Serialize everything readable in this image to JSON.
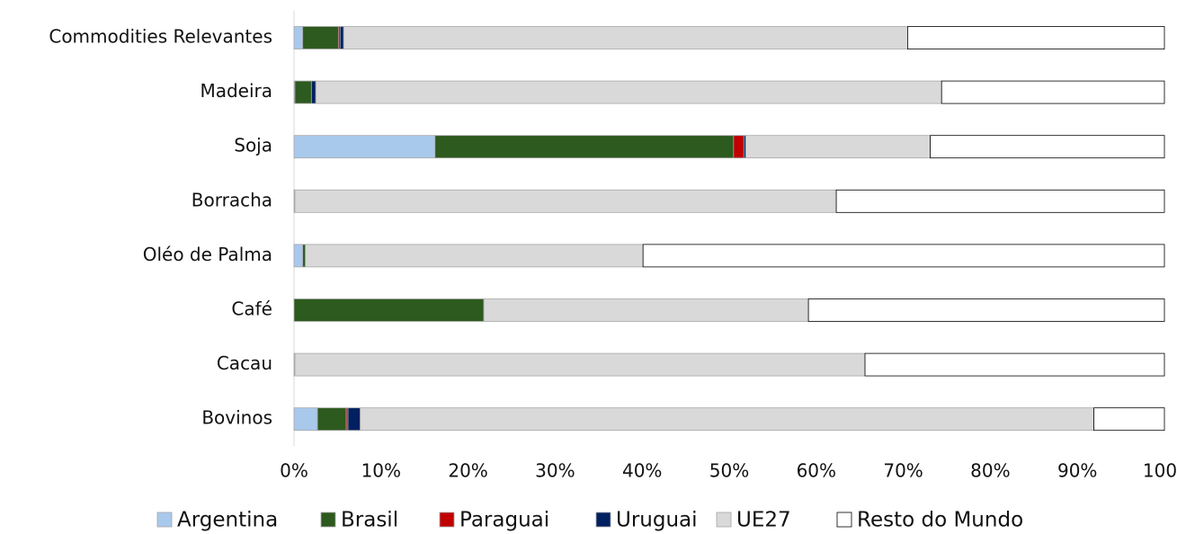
{
  "chart_data": {
    "type": "stacked_barh",
    "categories": [
      "Commodities Relevantes",
      "Madeira",
      "Soja",
      "Borracha",
      "Oléo de Palma",
      "Café",
      "Cacau",
      "Bovinos"
    ],
    "series": [
      {
        "name": "Argentina",
        "color": "#a9c9ec",
        "values": [
          1.0,
          0.1,
          16.2,
          0.1,
          1.0,
          0,
          0.1,
          2.7
        ]
      },
      {
        "name": "Brasil",
        "color": "#2d5a1e",
        "values": [
          4.1,
          1.9,
          34.3,
          0,
          0.3,
          21.8,
          0,
          3.3
        ]
      },
      {
        "name": "Paraguai",
        "color": "#c00000",
        "values": [
          0.2,
          0,
          1.2,
          0,
          0,
          0,
          0,
          0.2
        ]
      },
      {
        "name": "Uruguai",
        "color": "#002060",
        "values": [
          0.4,
          0.5,
          0.2,
          0,
          0,
          0,
          0,
          1.4
        ]
      },
      {
        "name": "UE27",
        "color": "#d9d9d9",
        "values": [
          64.8,
          71.9,
          21.2,
          62.2,
          38.8,
          37.3,
          65.5,
          84.3
        ]
      },
      {
        "name": "Resto do Mundo",
        "color": "#ffffff",
        "values": [
          29.5,
          25.6,
          26.9,
          37.7,
          59.9,
          40.9,
          34.4,
          8.1
        ]
      }
    ],
    "xlim": [
      0,
      100
    ],
    "xticks": [
      {
        "value": 0,
        "label": "0%"
      },
      {
        "value": 10,
        "label": "10%"
      },
      {
        "value": 20,
        "label": "20%"
      },
      {
        "value": 30,
        "label": "30%"
      },
      {
        "value": 40,
        "label": "40%"
      },
      {
        "value": 50,
        "label": "50%"
      },
      {
        "value": 60,
        "label": "60%"
      },
      {
        "value": 70,
        "label": "70%"
      },
      {
        "value": 80,
        "label": "80%"
      },
      {
        "value": 90,
        "label": "90%"
      },
      100
    ],
    "legend": "bottom"
  }
}
